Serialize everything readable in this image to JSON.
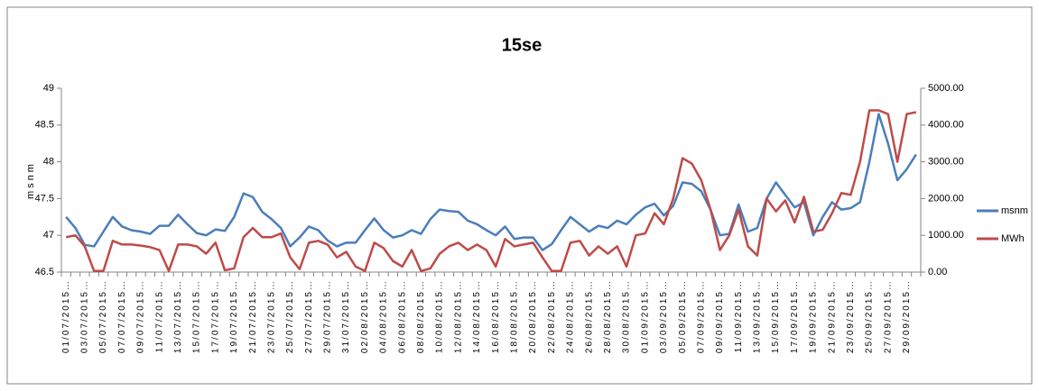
{
  "chart_data": {
    "type": "line",
    "title": "15se",
    "ylabel": "msnm",
    "categories": [
      "01/07/2015…",
      null,
      "03/07/2015…",
      null,
      "05/07/2015…",
      null,
      "07/07/2015…",
      null,
      "09/07/2015…",
      null,
      "11/07/2015…",
      null,
      "13/07/2015…",
      null,
      "15/07/2015…",
      null,
      "17/07/2015…",
      null,
      "19/07/2015…",
      null,
      "21/07/2015…",
      null,
      "23/07/2015…",
      null,
      "25/07/2015…",
      null,
      "27/07/2015…",
      null,
      "29/07/2015…",
      null,
      "31/07/2015…",
      null,
      "02/08/2015…",
      null,
      "04/08/2015…",
      null,
      "06/08/2015…",
      null,
      "08/08/2015…",
      null,
      "10/08/2015…",
      null,
      "12/08/2015…",
      null,
      "14/08/2015…",
      null,
      "16/08/2015…",
      null,
      "18/08/2015…",
      null,
      "20/08/2015…",
      null,
      "22/08/2015…",
      null,
      "24/08/2015…",
      null,
      "26/08/2015…",
      null,
      "28/08/2015…",
      null,
      "30/08/2015…",
      null,
      "01/09/2015…",
      null,
      "03/09/2015…",
      null,
      "05/09/2015…",
      null,
      "07/09/2015…",
      null,
      "09/09/2015…",
      null,
      "11/09/2015…",
      null,
      "13/09/2015…",
      null,
      "15/09/2015…",
      null,
      "17/09/2015…",
      null,
      "19/09/2015…",
      null,
      "21/09/2015…",
      null,
      "23/09/2015…",
      null,
      "25/09/2015…",
      null,
      "27/09/2015…",
      null,
      "29/09/2015…",
      null
    ],
    "series": [
      {
        "name": "msnm",
        "color": "#4a7ebb",
        "values": [
          47.25,
          47.1,
          46.87,
          46.85,
          47.05,
          47.25,
          47.12,
          47.07,
          47.05,
          47.02,
          47.13,
          47.13,
          47.28,
          47.15,
          47.03,
          47.0,
          47.08,
          47.06,
          47.25,
          47.57,
          47.52,
          47.32,
          47.22,
          47.1,
          46.85,
          46.97,
          47.12,
          47.07,
          46.93,
          46.85,
          46.9,
          46.9,
          47.07,
          47.23,
          47.07,
          46.97,
          47.0,
          47.07,
          47.02,
          47.22,
          47.35,
          47.33,
          47.32,
          47.2,
          47.15,
          47.07,
          47.0,
          47.12,
          46.95,
          46.97,
          46.97,
          46.8,
          46.88,
          47.07,
          47.25,
          47.15,
          47.05,
          47.13,
          47.1,
          47.2,
          47.15,
          47.28,
          47.38,
          47.43,
          47.27,
          47.4,
          47.72,
          47.7,
          47.6,
          47.35,
          47.0,
          47.02,
          47.42,
          47.05,
          47.1,
          47.5,
          47.72,
          47.55,
          47.38,
          47.45,
          47.0,
          47.25,
          47.45,
          47.35,
          47.37,
          47.45,
          48.0,
          48.65,
          48.25,
          47.75,
          47.9,
          48.1
        ]
      },
      {
        "name": "MWh",
        "color": "#be4b48",
        "axis": "y2",
        "values": [
          950,
          1000,
          700,
          30,
          30,
          850,
          750,
          750,
          720,
          680,
          600,
          30,
          750,
          750,
          700,
          500,
          800,
          50,
          100,
          950,
          1200,
          950,
          950,
          1050,
          400,
          80,
          800,
          850,
          750,
          400,
          550,
          150,
          30,
          800,
          650,
          300,
          150,
          600,
          30,
          100,
          500,
          700,
          800,
          600,
          750,
          600,
          150,
          900,
          700,
          750,
          800,
          400,
          30,
          30,
          800,
          850,
          450,
          700,
          500,
          700,
          150,
          1000,
          1050,
          1600,
          1300,
          2000,
          3100,
          2950,
          2500,
          1700,
          600,
          1000,
          1700,
          700,
          450,
          2000,
          1650,
          1950,
          1350,
          2050,
          1100,
          1150,
          1600,
          2150,
          2100,
          3000,
          4400,
          4400,
          4300,
          3000,
          4300,
          4350
        ]
      }
    ],
    "ylim": [
      46.5,
      49
    ],
    "yticks": [
      46.5,
      47,
      47.5,
      48,
      48.5,
      49
    ],
    "y2lim": [
      0,
      5000
    ],
    "y2ticks": [
      {
        "value": 0,
        "label": "0.00"
      },
      {
        "value": 1000,
        "label": "1000.00"
      },
      {
        "value": 2000,
        "label": "2000.00"
      },
      {
        "value": 3000,
        "label": "3000.00"
      },
      {
        "value": 4000,
        "label": "4000.00"
      },
      {
        "value": 5000,
        "label": "5000.00"
      }
    ],
    "grid": false,
    "legend": "right"
  }
}
